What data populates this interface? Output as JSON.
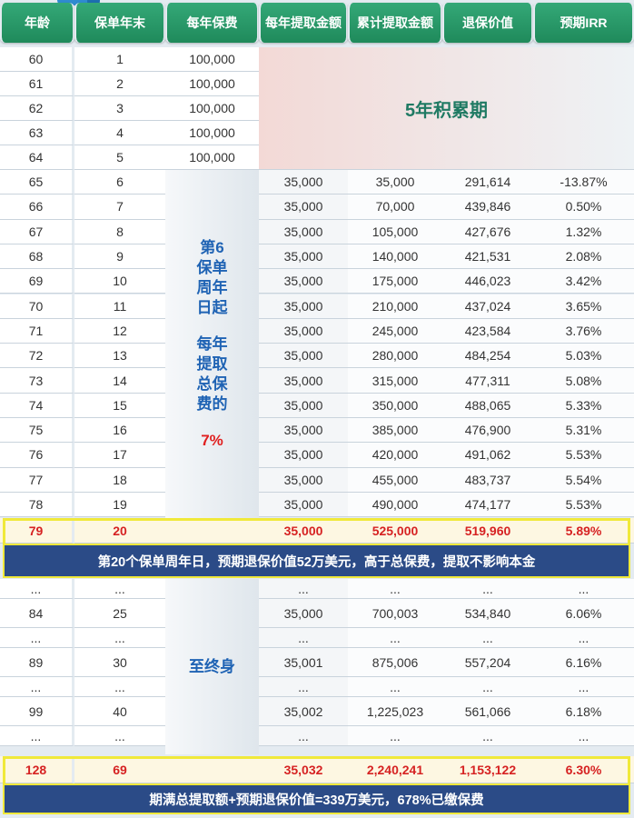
{
  "headers": [
    "年龄",
    "保单年末",
    "每年保费",
    "每年提取金额",
    "累计提取金额",
    "退保价值",
    "预期IRR"
  ],
  "accumulation_label": "5年积累期",
  "withdraw_note_lines": [
    "第6",
    "保单",
    "周年",
    "日起",
    "",
    "每年",
    "提取",
    "总保",
    "费的"
  ],
  "withdraw_pct": "7%",
  "lifetime_label": "至终身",
  "premium_rows": [
    {
      "age": "60",
      "year": "1",
      "premium": "100,000"
    },
    {
      "age": "61",
      "year": "2",
      "premium": "100,000"
    },
    {
      "age": "62",
      "year": "3",
      "premium": "100,000"
    },
    {
      "age": "63",
      "year": "4",
      "premium": "100,000"
    },
    {
      "age": "64",
      "year": "5",
      "premium": "100,000"
    }
  ],
  "withdraw_rows": [
    {
      "age": "65",
      "year": "6",
      "withdraw": "35,000",
      "cumulative": "35,000",
      "surrender": "291,614",
      "irr": "-13.87%"
    },
    {
      "age": "66",
      "year": "7",
      "withdraw": "35,000",
      "cumulative": "70,000",
      "surrender": "439,846",
      "irr": "0.50%"
    },
    {
      "age": "67",
      "year": "8",
      "withdraw": "35,000",
      "cumulative": "105,000",
      "surrender": "427,676",
      "irr": "1.32%"
    },
    {
      "age": "68",
      "year": "9",
      "withdraw": "35,000",
      "cumulative": "140,000",
      "surrender": "421,531",
      "irr": "2.08%"
    },
    {
      "age": "69",
      "year": "10",
      "withdraw": "35,000",
      "cumulative": "175,000",
      "surrender": "446,023",
      "irr": "3.42%"
    },
    {
      "age": "70",
      "year": "11",
      "withdraw": "35,000",
      "cumulative": "210,000",
      "surrender": "437,024",
      "irr": "3.65%"
    },
    {
      "age": "71",
      "year": "12",
      "withdraw": "35,000",
      "cumulative": "245,000",
      "surrender": "423,584",
      "irr": "3.76%"
    },
    {
      "age": "72",
      "year": "13",
      "withdraw": "35,000",
      "cumulative": "280,000",
      "surrender": "484,254",
      "irr": "5.03%"
    },
    {
      "age": "73",
      "year": "14",
      "withdraw": "35,000",
      "cumulative": "315,000",
      "surrender": "477,311",
      "irr": "5.08%"
    },
    {
      "age": "74",
      "year": "15",
      "withdraw": "35,000",
      "cumulative": "350,000",
      "surrender": "488,065",
      "irr": "5.33%"
    },
    {
      "age": "75",
      "year": "16",
      "withdraw": "35,000",
      "cumulative": "385,000",
      "surrender": "476,900",
      "irr": "5.31%"
    },
    {
      "age": "76",
      "year": "17",
      "withdraw": "35,000",
      "cumulative": "420,000",
      "surrender": "491,062",
      "irr": "5.53%"
    },
    {
      "age": "77",
      "year": "18",
      "withdraw": "35,000",
      "cumulative": "455,000",
      "surrender": "483,737",
      "irr": "5.54%"
    },
    {
      "age": "78",
      "year": "19",
      "withdraw": "35,000",
      "cumulative": "490,000",
      "surrender": "474,177",
      "irr": "5.53%"
    }
  ],
  "highlight_row_20": {
    "age": "79",
    "year": "20",
    "withdraw": "35,000",
    "cumulative": "525,000",
    "surrender": "519,960",
    "irr": "5.89%"
  },
  "banner_20": "第20个保单周年日，预期退保价值52万美元，高于总保费，提取不影响本金",
  "ellipsis": "...",
  "later_rows": [
    {
      "age": "84",
      "year": "25",
      "withdraw": "35,000",
      "cumulative": "700,003",
      "surrender": "534,840",
      "irr": "6.06%"
    },
    {
      "age": "89",
      "year": "30",
      "withdraw": "35,001",
      "cumulative": "875,006",
      "surrender": "557,204",
      "irr": "6.16%"
    },
    {
      "age": "99",
      "year": "40",
      "withdraw": "35,002",
      "cumulative": "1,225,023",
      "surrender": "561,066",
      "irr": "6.18%"
    }
  ],
  "highlight_row_69": {
    "age": "128",
    "year": "69",
    "withdraw": "35,032",
    "cumulative": "2,240,241",
    "surrender": "1,153,122",
    "irr": "6.30%"
  },
  "banner_final": "期满总提取额+预期退保价值=339万美元，678%已缴保费",
  "colors": {
    "header": "#1f8a5b",
    "accent_blue": "#1f63b4",
    "highlight_red": "#d62222",
    "banner": "#2b4b87",
    "highlight_border": "#f0e93a"
  }
}
